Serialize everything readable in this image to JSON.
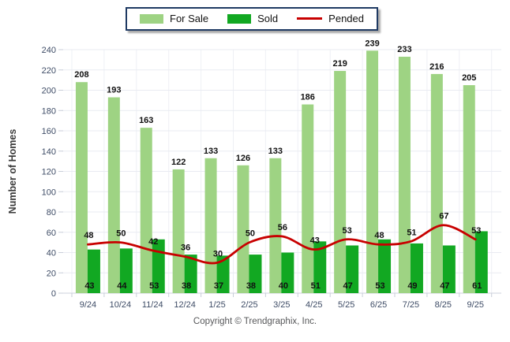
{
  "chart_data": {
    "type": "bar",
    "categories": [
      "9/24",
      "10/24",
      "11/24",
      "12/24",
      "1/25",
      "2/25",
      "3/25",
      "4/25",
      "5/25",
      "6/25",
      "7/25",
      "8/25",
      "9/25"
    ],
    "series": [
      {
        "name": "For Sale",
        "type": "bar",
        "color": "#9ed383",
        "values": [
          208,
          193,
          163,
          122,
          133,
          126,
          133,
          186,
          219,
          239,
          233,
          216,
          205
        ]
      },
      {
        "name": "Sold",
        "type": "bar",
        "color": "#12a822",
        "values": [
          43,
          44,
          53,
          38,
          37,
          38,
          40,
          51,
          47,
          53,
          49,
          47,
          61
        ]
      },
      {
        "name": "Pended",
        "type": "line",
        "color": "#c80000",
        "values": [
          48,
          50,
          42,
          36,
          30,
          50,
          56,
          43,
          53,
          48,
          51,
          67,
          53
        ]
      }
    ],
    "title": "",
    "xlabel": "",
    "ylabel": "Number of Homes",
    "ylim": [
      0,
      240
    ],
    "ytick_step": 20,
    "grid": true,
    "legend_position": "top",
    "value_labels": true
  },
  "footer": {
    "copyright": "Copyright © Trendgraphix, Inc."
  }
}
